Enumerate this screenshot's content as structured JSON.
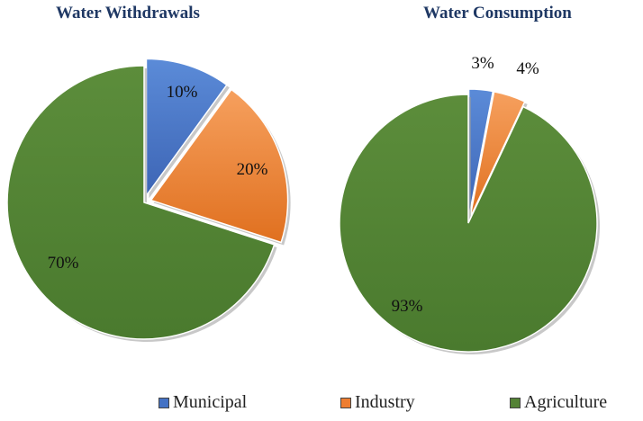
{
  "chart_data": [
    {
      "type": "pie",
      "title": "Water Withdrawals",
      "slices": [
        {
          "name": "Municipal",
          "value": 10,
          "label": "10%",
          "exploded": true
        },
        {
          "name": "Industry",
          "value": 20,
          "label": "20%",
          "exploded": true
        },
        {
          "name": "Agriculture",
          "value": 70,
          "label": "70%",
          "exploded": false
        }
      ]
    },
    {
      "type": "pie",
      "title": "Water Consumption",
      "slices": [
        {
          "name": "Municipal",
          "value": 3,
          "label": "3%",
          "exploded": true
        },
        {
          "name": "Industry",
          "value": 4,
          "label": "4%",
          "exploded": true
        },
        {
          "name": "Agriculture",
          "value": 93,
          "label": "93%",
          "exploded": false
        }
      ]
    }
  ],
  "legend": {
    "placement": "bottom",
    "items": [
      {
        "label": "Municipal",
        "color": "#4472c4"
      },
      {
        "label": "Industry",
        "color": "#ed7d31"
      },
      {
        "label": "Agriculture",
        "color": "#548235"
      }
    ]
  },
  "colors": {
    "Municipal": "#4472c4",
    "Industry": "#ed7d31",
    "Agriculture": "#548235",
    "title": "#1f3864"
  }
}
